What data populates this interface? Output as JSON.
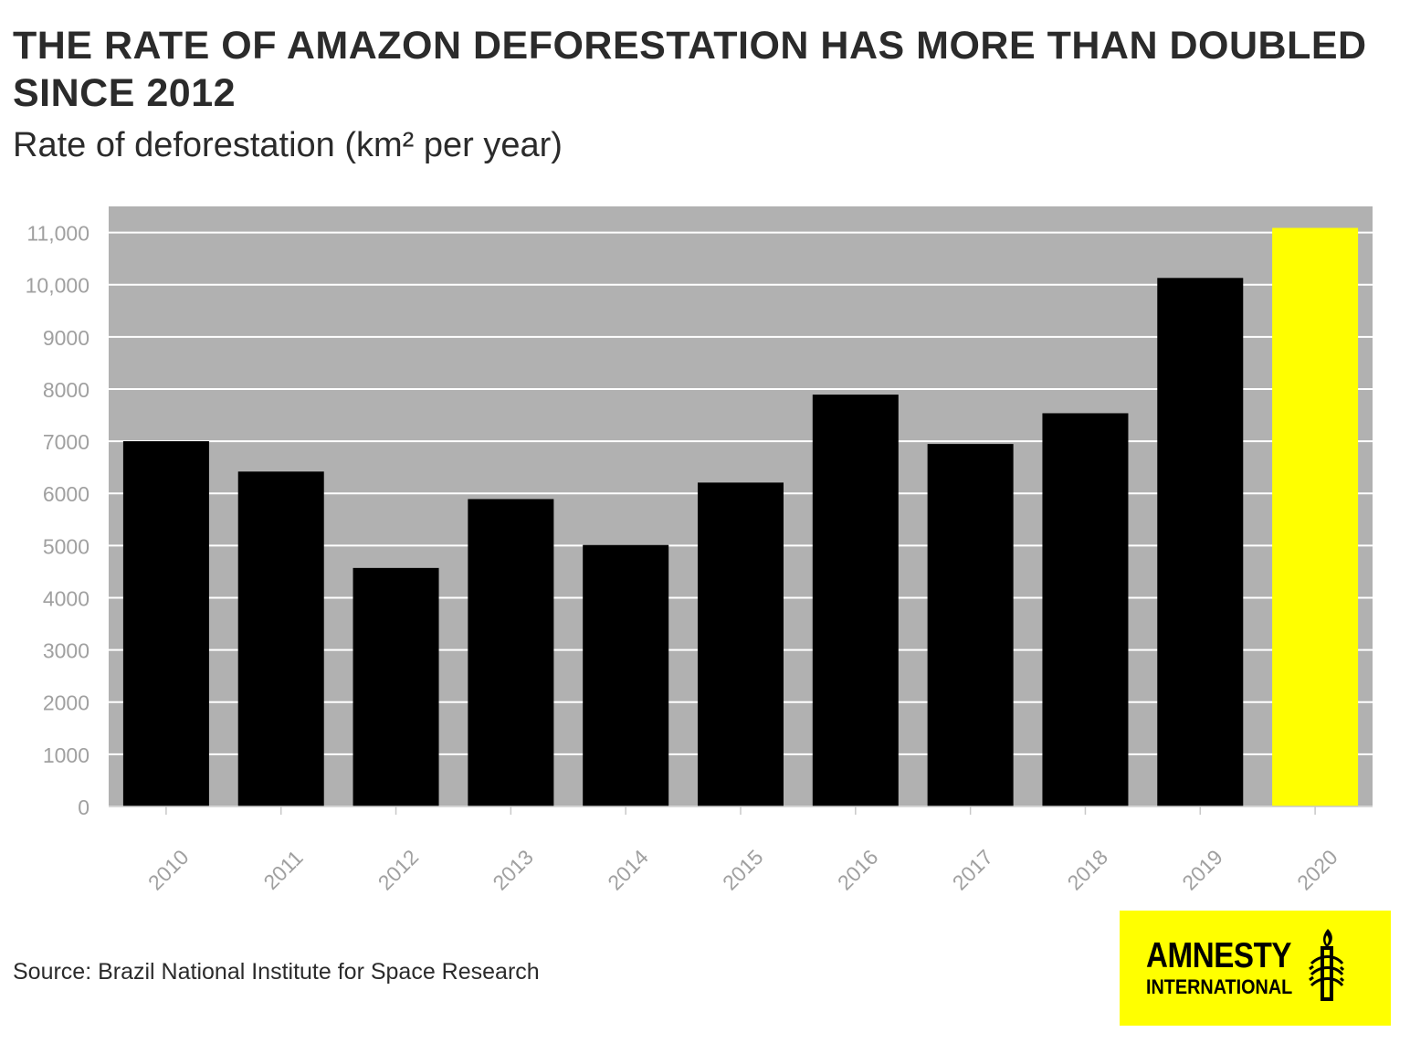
{
  "chart_data": {
    "type": "bar",
    "title": "THE RATE OF AMAZON DEFORESTATION HAS MORE THAN DOUBLED SINCE 2012",
    "subtitle": "Rate of deforestation (km² per year)",
    "categories": [
      "2010",
      "2011",
      "2012",
      "2013",
      "2014",
      "2015",
      "2016",
      "2017",
      "2018",
      "2019",
      "2020"
    ],
    "values": [
      7000,
      6418,
      4571,
      5891,
      5012,
      6207,
      7893,
      6947,
      7536,
      10129,
      11088
    ],
    "highlight_category": "2020",
    "bar_color": "#000000",
    "highlight_color": "#ffff00",
    "plot_background": "#b1b1b1",
    "grid_color": "#ffffff",
    "tick_label_color": "#a0a0a0",
    "ylim": [
      0,
      11500
    ],
    "yticks": [
      0,
      1000,
      2000,
      3000,
      4000,
      5000,
      6000,
      7000,
      8000,
      9000,
      10000,
      11000
    ],
    "ytick_labels": [
      "0",
      "1000",
      "2000",
      "3000",
      "4000",
      "5000",
      "6000",
      "7000",
      "8000",
      "9000",
      "10,000",
      "11,000"
    ],
    "grid": true,
    "legend": "none",
    "xlabel": "",
    "ylabel": ""
  },
  "source": "Source: Brazil National Institute for Space Research",
  "logo": {
    "line1": "AMNESTY",
    "line2": "INTERNATIONAL",
    "icon": "candle-barbed-wire-icon",
    "background": "#ffff00"
  }
}
